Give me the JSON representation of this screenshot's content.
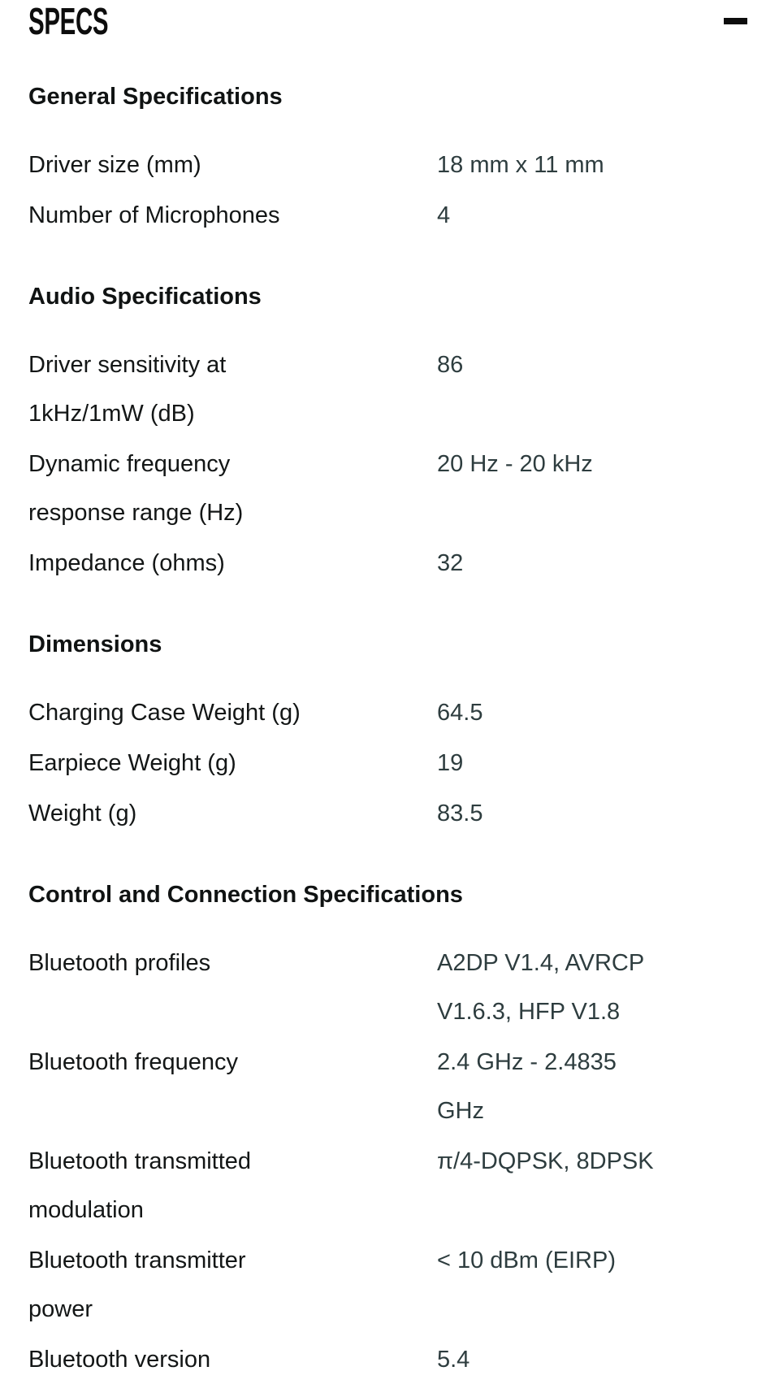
{
  "header": {
    "title": "SPECS",
    "collapse_icon": "minus-icon",
    "state": "expanded"
  },
  "colors": {
    "background": "#ffffff",
    "label_text": "#131616",
    "value_text": "#2e3d3f",
    "title_text": "#0d0d0d"
  },
  "sections": [
    {
      "title": "General Specifications",
      "rows": [
        {
          "label": "Driver size (mm)",
          "value": "18 mm x 11 mm"
        },
        {
          "label": "Number of Microphones",
          "value": "4"
        }
      ]
    },
    {
      "title": "Audio Specifications",
      "rows": [
        {
          "label": "Driver sensitivity at 1kHz/1mW (dB)",
          "value": "86"
        },
        {
          "label": "Dynamic frequency response range (Hz)",
          "value": "20 Hz - 20 kHz"
        },
        {
          "label": "Impedance (ohms)",
          "value": "32"
        }
      ]
    },
    {
      "title": "Dimensions",
      "rows": [
        {
          "label": "Charging Case Weight (g)",
          "value": "64.5"
        },
        {
          "label": "Earpiece Weight (g)",
          "value": "19"
        },
        {
          "label": "Weight (g)",
          "value": "83.5"
        }
      ]
    },
    {
      "title": "Control and Connection Specifications",
      "rows": [
        {
          "label": "Bluetooth profiles",
          "value": "A2DP V1.4, AVRCP V1.6.3, HFP V1.8"
        },
        {
          "label": "Bluetooth frequency",
          "value": "2.4 GHz - 2.4835 GHz"
        },
        {
          "label": "Bluetooth transmitted modulation",
          "value": "π/4-DQPSK, 8DPSK"
        },
        {
          "label": "Bluetooth transmitter power",
          "value": "< 10 dBm (EIRP)"
        },
        {
          "label": "Bluetooth version",
          "value": "5.4"
        }
      ]
    }
  ]
}
